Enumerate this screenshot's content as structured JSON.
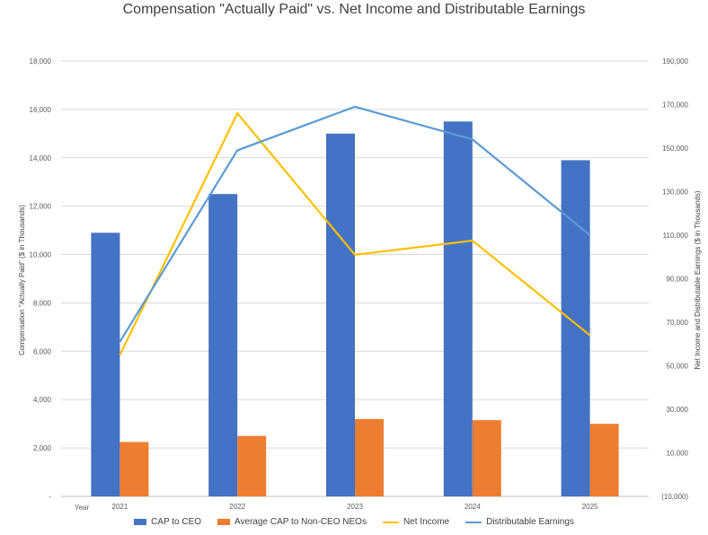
{
  "chart_data": {
    "type": "bar",
    "title": "Compensation \"Actually Paid\" vs. Net Income and Distributable Earnings",
    "x_axis_label": "Year",
    "categories": [
      "2021",
      "2022",
      "2023",
      "2024",
      "2025"
    ],
    "ylabel_left": "Compensation \"Actually Paid\" ($ in Thousands)",
    "ylabel_right": "Net Income and Distributable Earnings ($ in Thousands)",
    "ylim_left": [
      0,
      18000
    ],
    "ylim_right": [
      -10000,
      190000
    ],
    "left_ticks": [
      "-",
      "2,000",
      "4,000",
      "6,000",
      "8,000",
      "10,000",
      "12,000",
      "14,000",
      "16,000",
      "18,000"
    ],
    "right_ticks": [
      "(10,000)",
      "10,000",
      "30,000",
      "50,000",
      "70,000",
      "90,000",
      "110,000",
      "130,000",
      "150,000",
      "170,000",
      "190,000"
    ],
    "grid": true,
    "legend_position": "bottom",
    "bar_series": [
      {
        "name": "CAP to CEO",
        "color": "#4472C4",
        "values": [
          10900,
          12500,
          15000,
          15500,
          13900
        ]
      },
      {
        "name": "Average CAP to Non-CEO NEOs",
        "color": "#ED7D31",
        "values": [
          2250,
          2500,
          3200,
          3150,
          3000
        ]
      }
    ],
    "line_series": [
      {
        "name": "Net Income",
        "color": "#FFC000",
        "values": [
          55000,
          166000,
          101000,
          107500,
          64000
        ]
      },
      {
        "name": "Distributable Earnings",
        "color": "#5B9BD5",
        "values": [
          61000,
          149000,
          169000,
          154000,
          110000
        ]
      }
    ]
  }
}
